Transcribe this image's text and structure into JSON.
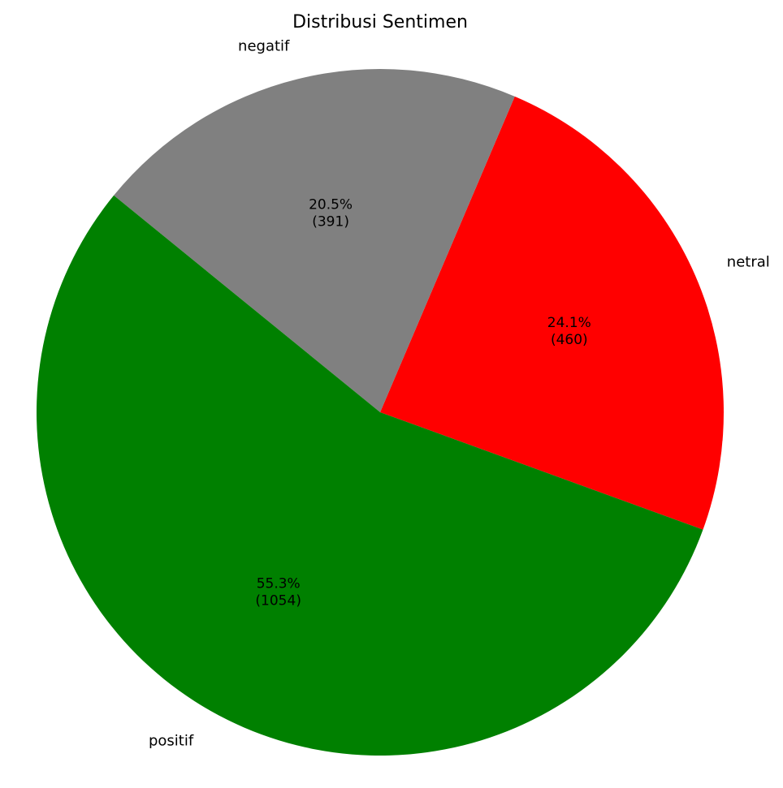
{
  "chart_data": {
    "type": "pie",
    "title": "Distribusi Sentimen",
    "slices": [
      {
        "label": "netral",
        "percent": "24.1%",
        "count": "(460)",
        "value": 460,
        "color": "#ff0000"
      },
      {
        "label": "negatif",
        "percent": "20.5%",
        "count": "(391)",
        "value": 391,
        "color": "#808080"
      },
      {
        "label": "positif",
        "percent": "55.3%",
        "count": "(1054)",
        "value": 1054,
        "color": "#008000"
      }
    ],
    "start_angle_deg": -20,
    "direction": "counterclockwise",
    "legend": "none"
  }
}
